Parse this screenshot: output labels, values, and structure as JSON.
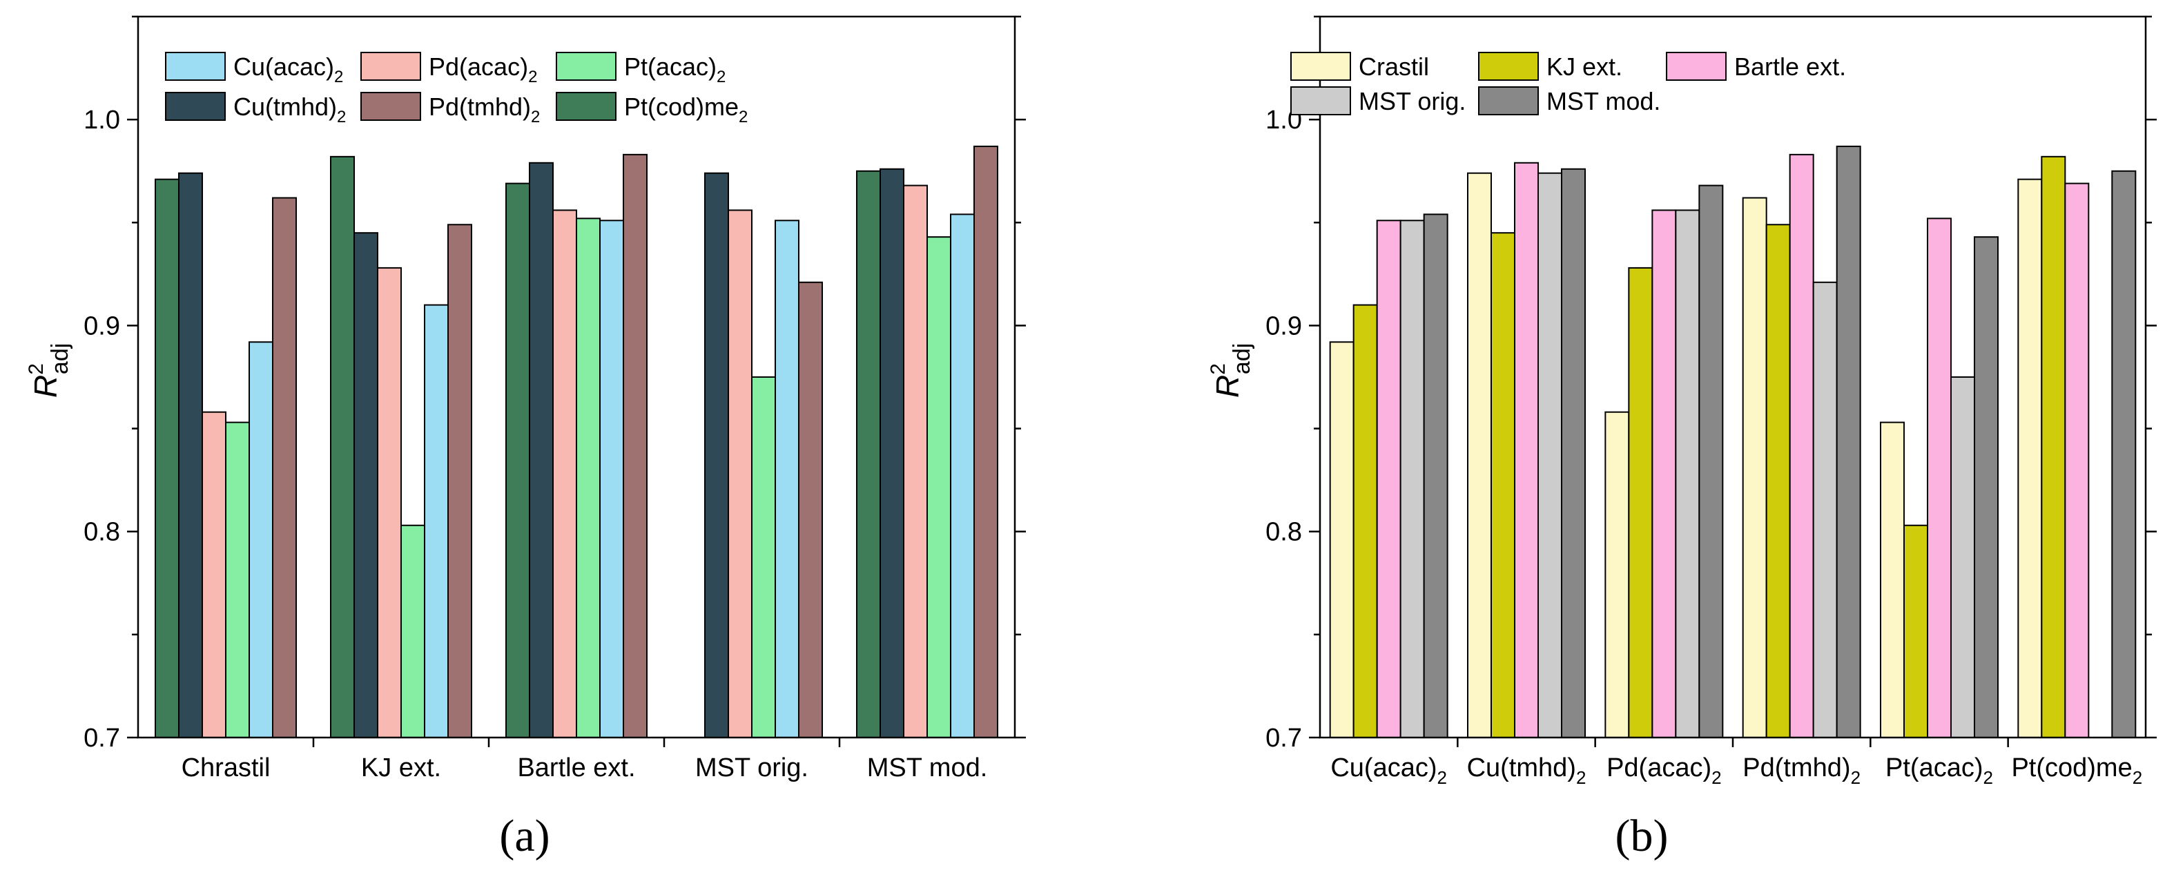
{
  "chart_data": [
    {
      "panel_label": "(a)",
      "type": "bar",
      "ylabel": "R",
      "ylabel_sup": "2",
      "ylabel_sub": "adj",
      "ylim": [
        0.7,
        1.05
      ],
      "yticks": [
        0.7,
        0.8,
        0.9,
        1.0
      ],
      "ytick_labels": [
        "0.7",
        "0.8",
        "0.9",
        "1.0"
      ],
      "legend_placement": "top-left",
      "legend_columns": 3,
      "categories": [
        "Chrastil",
        "KJ ext.",
        "Bartle ext.",
        "MST orig.",
        "MST mod."
      ],
      "series": [
        {
          "name": "Pt(cod)me",
          "sub": "2",
          "color": "#3e7d58",
          "values": [
            0.971,
            0.982,
            0.969,
            null,
            0.975
          ]
        },
        {
          "name": "Cu(tmhd)",
          "sub": "2",
          "color": "#2f4a56",
          "values": [
            0.974,
            0.945,
            0.979,
            0.974,
            0.976
          ]
        },
        {
          "name": "Pd(acac)",
          "sub": "2",
          "color": "#f9b9b3",
          "values": [
            0.858,
            0.928,
            0.956,
            0.956,
            0.968
          ]
        },
        {
          "name": "Pt(acac)",
          "sub": "2",
          "color": "#86eea2",
          "values": [
            0.853,
            0.803,
            0.952,
            0.875,
            0.943
          ]
        },
        {
          "name": "Cu(acac)",
          "sub": "2",
          "color": "#9dddf4",
          "values": [
            0.892,
            0.91,
            0.951,
            0.951,
            0.954
          ]
        },
        {
          "name": "Pd(tmhd)",
          "sub": "2",
          "color": "#9e7270",
          "values": [
            0.962,
            0.949,
            0.983,
            0.921,
            0.987
          ]
        }
      ],
      "legend_order": [
        4,
        2,
        3,
        1,
        5,
        0
      ]
    },
    {
      "panel_label": "(b)",
      "type": "bar",
      "ylabel": "R",
      "ylabel_sup": "2",
      "ylabel_sub": "adj",
      "ylim": [
        0.7,
        1.05
      ],
      "yticks": [
        0.7,
        0.8,
        0.9,
        1.0
      ],
      "ytick_labels": [
        "0.7",
        "0.8",
        "0.9",
        "1.0"
      ],
      "legend_placement": "top-left",
      "legend_columns": 3,
      "categories": [
        {
          "name": "Cu(acac)",
          "sub": "2"
        },
        {
          "name": "Cu(tmhd)",
          "sub": "2"
        },
        {
          "name": "Pd(acac)",
          "sub": "2"
        },
        {
          "name": "Pd(tmhd)",
          "sub": "2"
        },
        {
          "name": "Pt(acac)",
          "sub": "2"
        },
        {
          "name": "Pt(cod)me",
          "sub": "2"
        }
      ],
      "series": [
        {
          "name": "Crastil",
          "sub": "",
          "color": "#fdf6c7",
          "values": [
            0.892,
            0.974,
            0.858,
            0.962,
            0.853,
            0.971
          ]
        },
        {
          "name": "KJ ext.",
          "sub": "",
          "color": "#cfcd0b",
          "values": [
            0.91,
            0.945,
            0.928,
            0.949,
            0.803,
            0.982
          ]
        },
        {
          "name": "Bartle ext.",
          "sub": "",
          "color": "#fcb3e0",
          "values": [
            0.951,
            0.979,
            0.956,
            0.983,
            0.952,
            0.969
          ]
        },
        {
          "name": "MST orig.",
          "sub": "",
          "color": "#cccccc",
          "values": [
            0.951,
            0.974,
            0.956,
            0.921,
            0.875,
            null
          ]
        },
        {
          "name": "MST mod.",
          "sub": "",
          "color": "#888888",
          "values": [
            0.954,
            0.976,
            0.968,
            0.987,
            0.943,
            0.975
          ]
        }
      ],
      "legend_order": [
        0,
        1,
        2,
        3,
        4
      ]
    }
  ]
}
